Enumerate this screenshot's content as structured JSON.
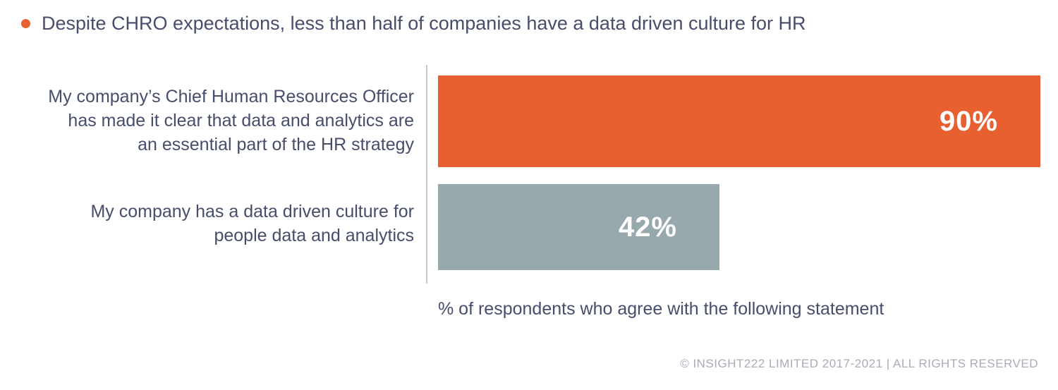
{
  "headline": "Despite CHRO expectations, less than half of companies have a data driven culture for HR",
  "footer": "© INSIGHT222 LIMITED 2017-2021 | ALL RIGHTS RESERVED",
  "colors": {
    "bullet": "#e85f30",
    "axis": "#c9c9c9"
  },
  "chart_data": {
    "type": "bar",
    "orientation": "horizontal",
    "categories": [
      "My company’s Chief Human Resources Officer has made it clear that data and analytics are an essential part of the HR strategy",
      "My company has a data driven culture for people data and analytics"
    ],
    "category_lines": [
      [
        "My company’s Chief Human Resources Officer",
        "has made it clear that data and analytics are",
        "an essential part of the HR strategy"
      ],
      [
        "My company has a data driven culture for",
        "people data and analytics"
      ]
    ],
    "values": [
      90,
      42
    ],
    "value_labels": [
      "90%",
      "42%"
    ],
    "bar_colors": [
      "#e85f30",
      "#98a9ae"
    ],
    "xlabel": "% of respondents who agree with the following statement",
    "xlim": [
      0,
      90
    ],
    "grid": false,
    "legend": "none"
  }
}
